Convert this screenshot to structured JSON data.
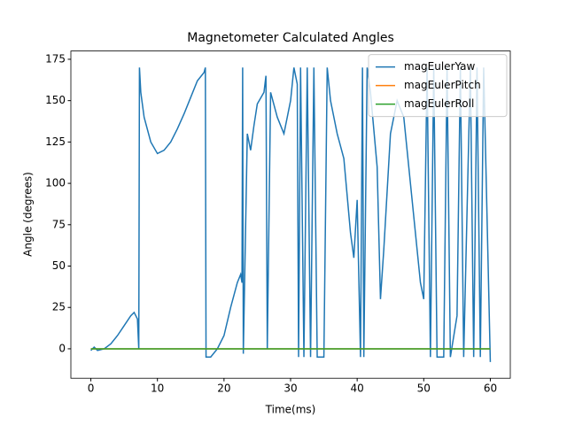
{
  "chart_data": {
    "type": "line",
    "title": "Magnetometer Calculated Angles",
    "x_label": "Time(ms)",
    "y_label": "Angle (degrees)",
    "xlim": [
      -3,
      63
    ],
    "ylim": [
      -17.8,
      180
    ],
    "xticks": [
      0,
      10,
      20,
      30,
      40,
      50,
      60
    ],
    "yticks": [
      0,
      25,
      50,
      75,
      100,
      125,
      150,
      175
    ],
    "legend": "upper right",
    "series": [
      {
        "name": "magEulerYaw",
        "color": "#1f77b4",
        "x": [
          0,
          0.5,
          1,
          2,
          3,
          4,
          5,
          6,
          6.5,
          7,
          7.2,
          7.3,
          7.5,
          8,
          9,
          10,
          11,
          12,
          13,
          14,
          15,
          16,
          17,
          17.2,
          17.3,
          18,
          19,
          20,
          21,
          22,
          22.5,
          22.7,
          22.8,
          22.9,
          23.5,
          24,
          24.5,
          25,
          26,
          26.3,
          26.5,
          27,
          28,
          29,
          30,
          30.5,
          31,
          31.2,
          31.5,
          32,
          32.5,
          33,
          33.5,
          34,
          35,
          35.5,
          36,
          37,
          38,
          39,
          39.5,
          40,
          40.5,
          40.8,
          41,
          41.5,
          42,
          43,
          43.5,
          44,
          45,
          46,
          47,
          48,
          49,
          49.5,
          50,
          50.5,
          51,
          51.5,
          52,
          53,
          53.5,
          54,
          55,
          55.5,
          56,
          57,
          57.5,
          58,
          58.5,
          59,
          60
        ],
        "values": [
          -1,
          1,
          -1,
          0,
          3,
          8,
          14,
          20,
          22,
          18,
          0,
          170,
          155,
          140,
          125,
          118,
          120,
          125,
          133,
          142,
          152,
          162,
          167,
          170,
          -5,
          -5,
          0,
          8,
          25,
          40,
          45,
          40,
          170,
          -3,
          130,
          120,
          135,
          148,
          155,
          165,
          0,
          155,
          140,
          130,
          150,
          170,
          160,
          -5,
          170,
          -5,
          170,
          -5,
          170,
          -5,
          -5,
          170,
          150,
          130,
          115,
          70,
          55,
          90,
          -5,
          170,
          -5,
          170,
          155,
          110,
          30,
          60,
          130,
          150,
          140,
          100,
          60,
          40,
          30,
          170,
          -5,
          170,
          -5,
          -5,
          170,
          -5,
          20,
          170,
          -5,
          170,
          -5,
          170,
          -5,
          170,
          -8
        ]
      },
      {
        "name": "magEulerPitch",
        "color": "#ff7f0e",
        "x": [
          0,
          60
        ],
        "values": [
          0,
          0
        ]
      },
      {
        "name": "magEulerRoll",
        "color": "#2ca02c",
        "x": [
          0,
          60
        ],
        "values": [
          0,
          0
        ]
      }
    ]
  }
}
